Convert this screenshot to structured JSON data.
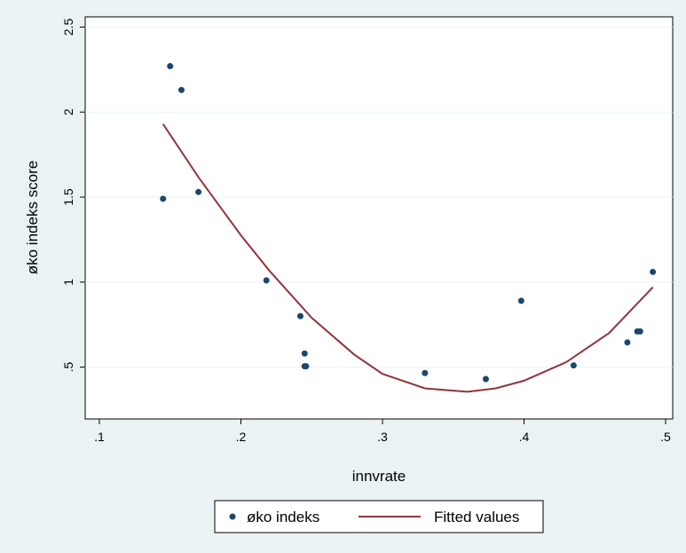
{
  "chart_data": {
    "type": "scatter",
    "xlabel": "innvrate",
    "ylabel": "øko indeks score",
    "xlim": [
      0.09,
      0.505
    ],
    "ylim": [
      0.195,
      2.56
    ],
    "xticks": [
      0.1,
      0.2,
      0.3,
      0.4,
      0.5
    ],
    "xtick_labels": [
      ".1",
      ".2",
      ".3",
      ".4",
      ".5"
    ],
    "yticks": [
      0.5,
      1,
      1.5,
      2,
      2.5
    ],
    "ytick_labels": [
      ".5",
      "1",
      "1.5",
      "2",
      "2.5"
    ],
    "grid": "horizontal",
    "legend_position": "bottom",
    "colors": {
      "background": "#eaf2f3",
      "plot_background": "#ffffff",
      "points": "#1a476f",
      "fit_line": "#90353b",
      "grid": "#eaf2f3"
    },
    "series": [
      {
        "name": "øko indeks",
        "kind": "scatter",
        "points": [
          [
            0.145,
            1.49
          ],
          [
            0.15,
            2.27
          ],
          [
            0.158,
            2.13
          ],
          [
            0.17,
            1.53
          ],
          [
            0.218,
            1.01
          ],
          [
            0.242,
            0.8
          ],
          [
            0.245,
            0.58
          ],
          [
            0.245,
            0.505
          ],
          [
            0.246,
            0.505
          ],
          [
            0.33,
            0.465
          ],
          [
            0.373,
            0.43
          ],
          [
            0.398,
            0.89
          ],
          [
            0.435,
            0.51
          ],
          [
            0.473,
            0.645
          ],
          [
            0.48,
            0.71
          ],
          [
            0.482,
            0.71
          ],
          [
            0.491,
            1.06
          ]
        ]
      },
      {
        "name": "Fitted values",
        "kind": "line",
        "points": [
          [
            0.145,
            1.93
          ],
          [
            0.17,
            1.617
          ],
          [
            0.2,
            1.275
          ],
          [
            0.22,
            1.068
          ],
          [
            0.25,
            0.79
          ],
          [
            0.28,
            0.574
          ],
          [
            0.3,
            0.46
          ],
          [
            0.33,
            0.375
          ],
          [
            0.36,
            0.355
          ],
          [
            0.38,
            0.375
          ],
          [
            0.4,
            0.42
          ],
          [
            0.43,
            0.53
          ],
          [
            0.46,
            0.7
          ],
          [
            0.491,
            0.97
          ]
        ]
      }
    ]
  }
}
